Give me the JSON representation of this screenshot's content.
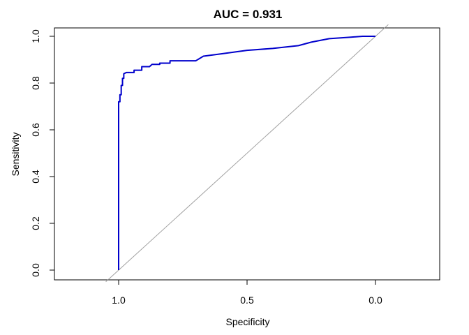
{
  "chart_data": {
    "type": "line",
    "title": "AUC = 0.931",
    "xlabel": "Specificity",
    "ylabel": "Sensitivity",
    "x_reversed": true,
    "xlim": [
      1.25,
      -0.25
    ],
    "ylim": [
      0.0,
      1.0
    ],
    "x_ticks": [
      1.0,
      0.5,
      0.0
    ],
    "x_tick_labels": [
      "1.0",
      "0.5",
      "0.0"
    ],
    "y_ticks": [
      0.0,
      0.2,
      0.4,
      0.6,
      0.8,
      1.0
    ],
    "y_tick_labels": [
      "0.0",
      "0.2",
      "0.4",
      "0.6",
      "0.8",
      "1.0"
    ],
    "grid": false,
    "legend": "none",
    "colors": {
      "roc_curve": "#0000CC",
      "reference": "#A0A0A0",
      "frame": "#000000"
    },
    "series": [
      {
        "x": [
          1.0,
          1.0,
          1.0,
          0.995,
          0.995,
          0.99,
          0.99,
          0.985,
          0.985,
          0.98,
          0.98,
          0.97,
          0.94,
          0.94,
          0.91,
          0.91,
          0.88,
          0.87,
          0.84,
          0.84,
          0.8,
          0.8,
          0.7,
          0.67,
          0.6,
          0.5,
          0.4,
          0.3,
          0.25,
          0.18,
          0.1,
          0.05,
          0.02,
          0.0
        ],
        "y": [
          0.0,
          0.6,
          0.72,
          0.72,
          0.75,
          0.75,
          0.79,
          0.79,
          0.82,
          0.82,
          0.84,
          0.845,
          0.845,
          0.855,
          0.855,
          0.87,
          0.87,
          0.88,
          0.88,
          0.885,
          0.885,
          0.895,
          0.895,
          0.915,
          0.925,
          0.94,
          0.948,
          0.96,
          0.975,
          0.99,
          0.996,
          1.0,
          1.0,
          1.0
        ]
      }
    ],
    "reference_line": {
      "x": [
        1.05,
        -0.05
      ],
      "y": [
        -0.05,
        1.05
      ]
    }
  }
}
